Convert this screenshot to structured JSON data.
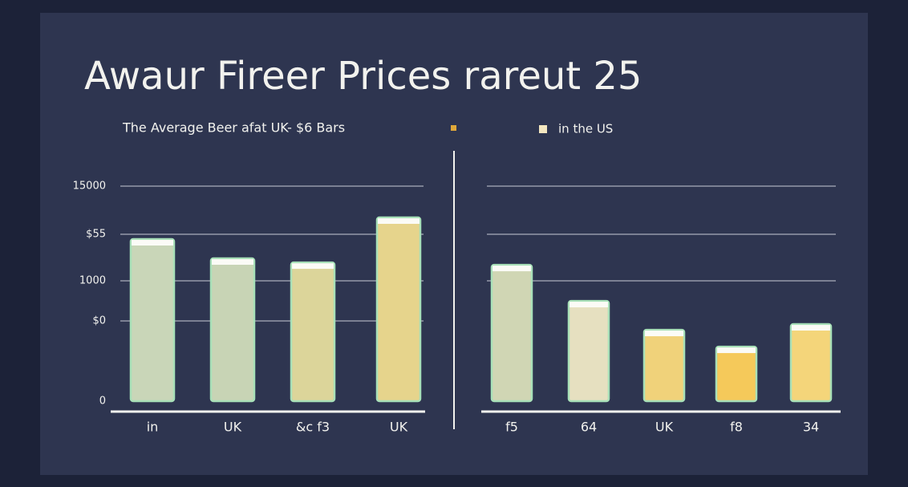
{
  "title": "Awaur Fireer Prices rareut 25",
  "subtitle": "The Average Beer afat UK- $6 Bars",
  "legend": [
    {
      "color": "#e0a83a"
    },
    {
      "color": "#f3e6c0",
      "label": "in the US"
    }
  ],
  "chart_data": [
    {
      "type": "bar",
      "categories": [
        "in",
        "UK",
        "&c f3",
        "UK"
      ],
      "values": [
        1347,
        1187,
        1153,
        1527
      ],
      "colors": [
        "#c9d6b8",
        "#c8d4b5",
        "#dcd59a",
        "#e6d48c"
      ],
      "ylim": [
        0,
        1787
      ],
      "yticks": [
        {
          "value": 0,
          "label": "0"
        },
        {
          "value": 667,
          "label": "$0"
        },
        1000,
        {
          "value": 1387,
          "label": "$55"
        },
        {
          "value": 1787,
          "label": "15000"
        }
      ],
      "grid": true
    },
    {
      "type": "bar",
      "categories": [
        "f5",
        "64",
        "UK",
        "f8",
        "34"
      ],
      "values": [
        1133,
        833,
        593,
        453,
        640
      ],
      "colors": [
        "#d0d6b4",
        "#e6e0c0",
        "#f0d27a",
        "#f5c95a",
        "#f4d57a"
      ],
      "ylim": [
        0,
        1787
      ],
      "yticks": [
        1000,
        1387,
        1787
      ],
      "tick_labels": false,
      "grid": true
    }
  ]
}
